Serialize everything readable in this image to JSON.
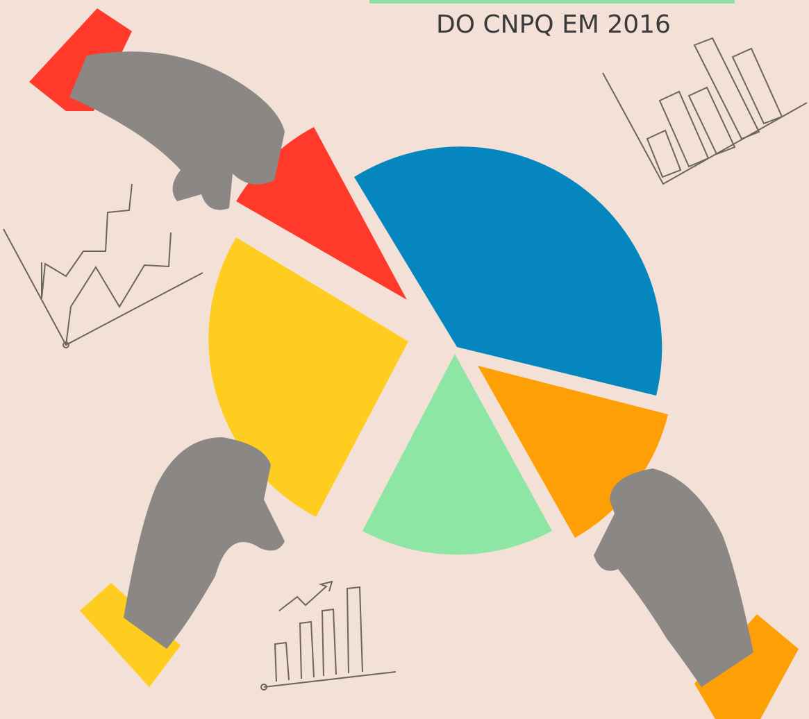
{
  "header": {
    "title": "DO CNPQ EM 2016"
  }
}
